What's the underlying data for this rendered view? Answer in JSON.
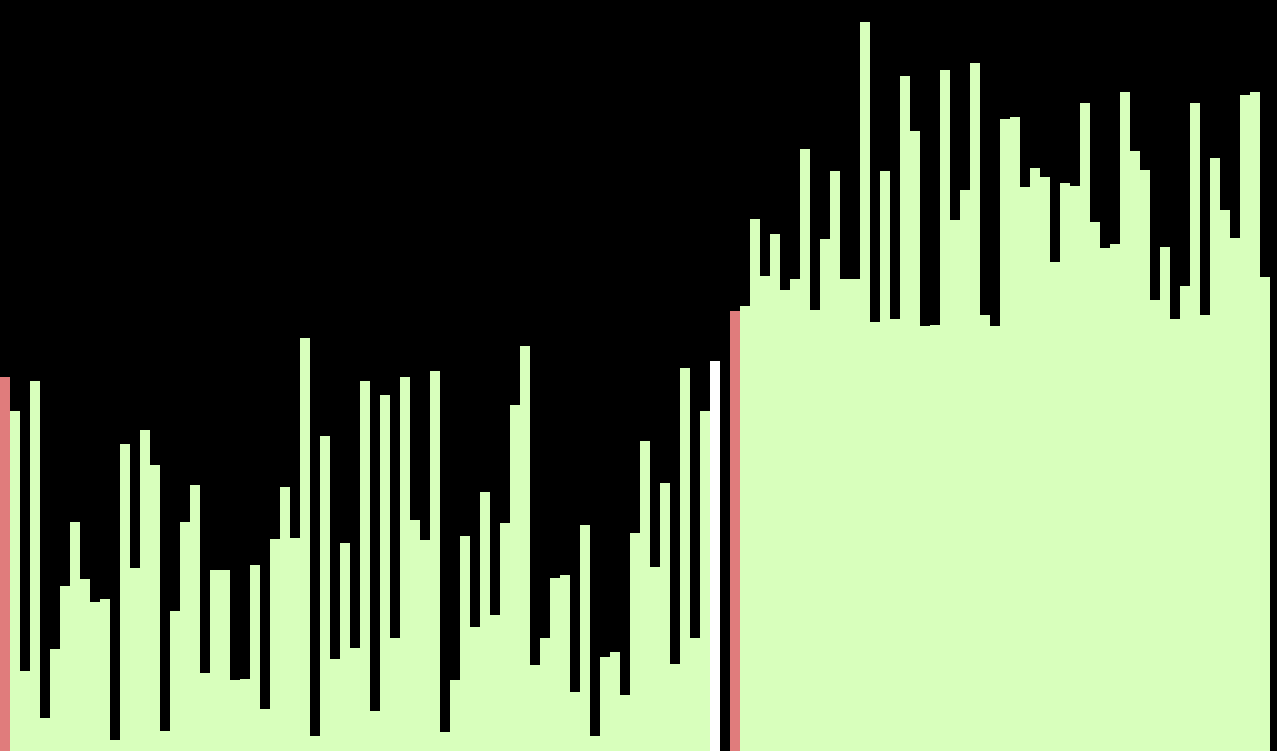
{
  "colors": {
    "background": "#000000",
    "bar": "#d8ffbc",
    "marker": "#e07c7c",
    "pivot": "#ffffff"
  },
  "chart_data": {
    "type": "bar",
    "title": "",
    "xlabel": "",
    "ylabel": "",
    "grid": false,
    "ylim": [
      0,
      751
    ],
    "values": [
      374,
      340,
      80,
      370,
      33,
      102,
      165,
      229,
      172,
      149,
      152,
      11,
      307,
      183,
      321,
      286,
      20,
      140,
      229,
      266,
      78,
      181,
      181,
      71,
      72,
      186,
      42,
      212,
      264,
      213,
      413,
      15,
      315,
      92,
      208,
      103,
      370,
      40,
      356,
      113,
      374,
      231,
      211,
      380,
      19,
      71,
      215,
      124,
      259,
      136,
      228,
      346,
      405,
      86,
      113,
      173,
      176,
      59,
      226,
      15,
      94,
      99,
      56,
      218,
      310,
      184,
      268,
      87,
      383,
      113,
      340,
      390,
      0,
      440,
      445,
      532,
      475,
      517,
      461,
      472,
      602,
      441,
      512,
      580,
      472,
      472,
      729,
      429,
      580,
      432,
      675,
      620,
      425,
      426,
      681,
      531,
      561,
      688,
      436,
      425,
      632,
      634,
      564,
      583,
      574,
      489,
      568,
      565,
      648,
      529,
      503,
      507,
      659,
      600,
      581,
      451,
      504,
      432,
      465,
      648,
      436,
      593,
      541,
      513,
      656,
      659,
      474
    ],
    "pivot_indices": [
      71,
      72
    ],
    "marker_indices": [
      0,
      73
    ]
  }
}
